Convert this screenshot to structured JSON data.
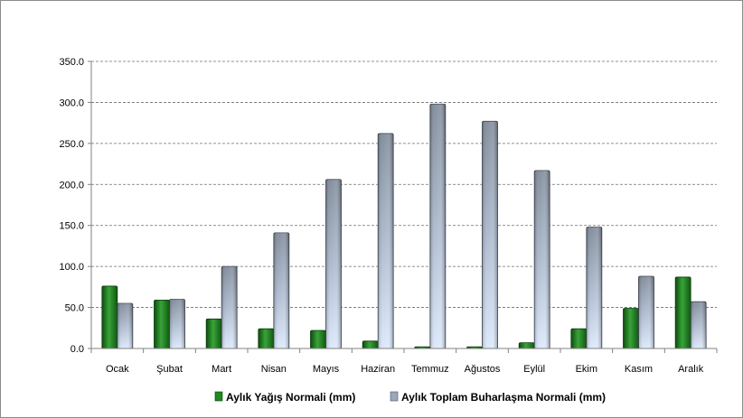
{
  "chart_data": {
    "type": "bar",
    "title": "",
    "xlabel": "",
    "ylabel": "",
    "ylim": [
      0,
      350
    ],
    "y_ticks": [
      "0.0",
      "50.0",
      "100.0",
      "150.0",
      "200.0",
      "250.0",
      "300.0",
      "350.0"
    ],
    "grid": true,
    "legend_position": "bottom",
    "categories": [
      "Ocak",
      "Şubat",
      "Mart",
      "Nisan",
      "Mayıs",
      "Haziran",
      "Temmuz",
      "Ağustos",
      "Eylül",
      "Ekim",
      "Kasım",
      "Aralık"
    ],
    "series": [
      {
        "name": "Aylık Yağış Normali (mm)",
        "color": "#1f8a1f",
        "values": [
          76,
          59,
          36,
          24,
          22,
          9,
          2,
          2,
          7,
          24,
          49,
          87
        ]
      },
      {
        "name": "Aylık Toplam Buharlaşma Normali (mm)",
        "color": "#9aa8bc",
        "values": [
          55,
          60,
          100,
          141,
          206,
          262,
          298,
          277,
          217,
          148,
          88,
          57
        ]
      }
    ]
  }
}
